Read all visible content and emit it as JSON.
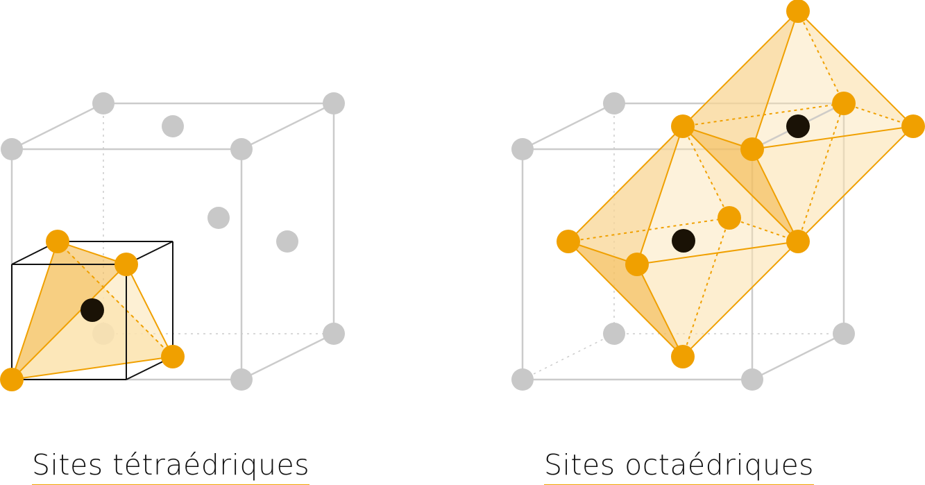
{
  "captions": {
    "tetra": "Sites tétraédriques",
    "octa": "Sites octaédriques"
  },
  "colors": {
    "lattice_atom": "#c8c8c8",
    "lattice_edge": "#cbcbcb",
    "site_atom": "#f0a000",
    "interstitial": "#1a1206",
    "face_light": "#fbe3b0",
    "face_mid": "#f8d594",
    "face_dark": "#f5c060",
    "subcube_edge": "#111111",
    "underline": "#f0a300"
  }
}
